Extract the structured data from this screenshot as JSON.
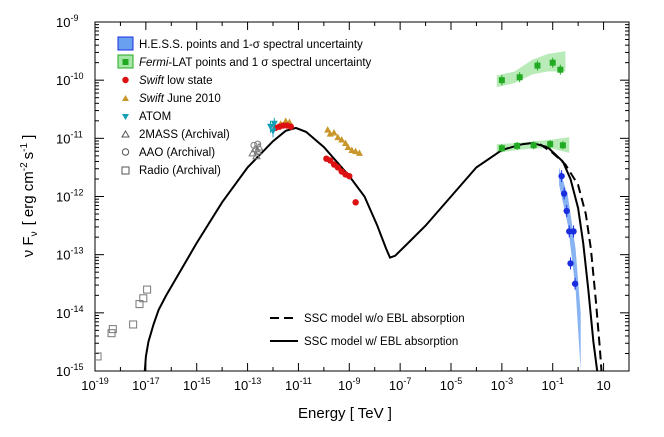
{
  "chart_data": {
    "type": "scatter",
    "xlabel": "Energy  [ TeV ]",
    "ylabel": "ν F",
    "ylabel_sub": "ν",
    "ylabel_units": "[ erg cm",
    "ylabel_exp1": "-2",
    "ylabel_s": "s",
    "ylabel_exp2": "-1",
    "ylabel_close": "]",
    "xscale": "log",
    "yscale": "log",
    "xlim_log10": [
      -19,
      2
    ],
    "ylim_log10": [
      -15,
      -9
    ],
    "x_ticks": [
      {
        "exp": -19,
        "base": "10",
        "sup": "-19"
      },
      {
        "exp": -17,
        "base": "10",
        "sup": "-17"
      },
      {
        "exp": -15,
        "base": "10",
        "sup": "-15"
      },
      {
        "exp": -13,
        "base": "10",
        "sup": "-13"
      },
      {
        "exp": -11,
        "base": "10",
        "sup": "-11"
      },
      {
        "exp": -9,
        "base": "10",
        "sup": "-9"
      },
      {
        "exp": -7,
        "base": "10",
        "sup": "-7"
      },
      {
        "exp": -5,
        "base": "10",
        "sup": "-5"
      },
      {
        "exp": -3,
        "base": "10",
        "sup": "-3"
      },
      {
        "exp": -1,
        "base": "10",
        "sup": "-1"
      },
      {
        "exp": 1,
        "base": "10",
        "sup": ""
      }
    ],
    "y_ticks": [
      {
        "exp": -9,
        "base": "10",
        "sup": "-9"
      },
      {
        "exp": -10,
        "base": "10",
        "sup": "-10"
      },
      {
        "exp": -11,
        "base": "10",
        "sup": "-11"
      },
      {
        "exp": -12,
        "base": "10",
        "sup": "-12"
      },
      {
        "exp": -13,
        "base": "10",
        "sup": "-13"
      },
      {
        "exp": -14,
        "base": "10",
        "sup": "-14"
      },
      {
        "exp": -15,
        "base": "10",
        "sup": "-15"
      }
    ],
    "legend": {
      "placement": "top-left",
      "hess": {
        "main": "H.E.S.S.",
        "rest": " points and 1-σ spectral uncertainty"
      },
      "fermi": {
        "italic": "Fermi",
        "rest": "-LAT points and 1 σ spectral uncertainty"
      },
      "swift_low": {
        "italic": "Swift",
        "rest": "  low state"
      },
      "swift_june": {
        "italic": "Swift",
        "rest": "  June 2010"
      },
      "atom": "ATOM",
      "twomass": "2MASS (Archival)",
      "aao": "AAO (Archival)",
      "radio": "Radio (Archival)",
      "ssc_no_ebl": "SSC model w/o EBL absorption",
      "ssc_ebl": "SSC model w/ EBL absorption"
    },
    "colors": {
      "swift_low": "#dd1111",
      "swift_june": "#c8962a",
      "atom": "#14a0b4",
      "fermi": "#22aa22",
      "fermi_band": "#a6e6a6",
      "hess": "#1a2ee0",
      "hess_band": "#6aa0f0",
      "archival": "#777777",
      "model": "#000000"
    },
    "series": [
      {
        "name": "SSC model w/ EBL absorption",
        "style": "solid",
        "points": [
          [
            -17.04,
            -15
          ],
          [
            -17,
            -14.75
          ],
          [
            -16.9,
            -14.5
          ],
          [
            -16.7,
            -14.2
          ],
          [
            -16.5,
            -13.95
          ],
          [
            -16.2,
            -13.7
          ],
          [
            -15.8,
            -13.4
          ],
          [
            -15,
            -12.8
          ],
          [
            -14,
            -12.1
          ],
          [
            -13,
            -11.5
          ],
          [
            -12,
            -11.05
          ],
          [
            -11.5,
            -10.87
          ],
          [
            -11.1,
            -10.82
          ],
          [
            -10.7,
            -10.89
          ],
          [
            -10,
            -11.15
          ],
          [
            -9,
            -11.65
          ],
          [
            -8.4,
            -12
          ],
          [
            -7.9,
            -12.5
          ],
          [
            -7.55,
            -12.9
          ],
          [
            -7.4,
            -13.05
          ],
          [
            -7.2,
            -13.02
          ],
          [
            -6.8,
            -12.85
          ],
          [
            -6,
            -12.5
          ],
          [
            -5,
            -12
          ],
          [
            -4,
            -11.5
          ],
          [
            -3,
            -11.2
          ],
          [
            -2.2,
            -11.1
          ],
          [
            -1.8,
            -11.08
          ],
          [
            -1.2,
            -11.15
          ],
          [
            -0.6,
            -11.4
          ],
          [
            -0.3,
            -11.7
          ],
          [
            0,
            -12.2
          ],
          [
            0.2,
            -12.8
          ],
          [
            0.4,
            -13.6
          ],
          [
            0.6,
            -14.5
          ],
          [
            0.75,
            -15
          ]
        ]
      },
      {
        "name": "SSC model w/o EBL absorption",
        "style": "dashed",
        "points": [
          [
            -1.5,
            -11.1
          ],
          [
            -1,
            -11.25
          ],
          [
            -0.5,
            -11.45
          ],
          [
            0,
            -11.8
          ],
          [
            0.3,
            -12.3
          ],
          [
            0.5,
            -12.9
          ],
          [
            0.7,
            -13.8
          ],
          [
            0.85,
            -14.6
          ],
          [
            0.92,
            -15
          ]
        ]
      },
      {
        "name": "Radio (Archival)",
        "marker": "open-square",
        "points": [
          [
            -18.9,
            -14.75
          ],
          [
            -18.35,
            -14.35
          ],
          [
            -18.3,
            -14.28
          ],
          [
            -17.5,
            -14.2
          ],
          [
            -17.25,
            -13.85
          ],
          [
            -17.1,
            -13.75
          ],
          [
            -16.95,
            -13.6
          ]
        ]
      },
      {
        "name": "2MASS (Archival)",
        "marker": "open-triangle",
        "points": [
          [
            -12.8,
            -11.25
          ],
          [
            -12.7,
            -11.18
          ],
          [
            -12.65,
            -11.3
          ],
          [
            -12.6,
            -11.22
          ],
          [
            -12.55,
            -11.15
          ]
        ]
      },
      {
        "name": "AAO (Archival)",
        "marker": "open-circle",
        "points": [
          [
            -12.75,
            -11.12
          ],
          [
            -12.6,
            -11.1
          ]
        ]
      },
      {
        "name": "ATOM",
        "marker": "triangle-down",
        "points": [
          [
            -12.1,
            -10.8
          ],
          [
            -12.0,
            -10.88
          ],
          [
            -11.95,
            -10.75
          ]
        ]
      },
      {
        "name": "Swift June 2010",
        "marker": "triangle",
        "points": [
          [
            -11.7,
            -10.75
          ],
          [
            -11.5,
            -10.7
          ],
          [
            -11.35,
            -10.72
          ],
          [
            -9.85,
            -10.85
          ],
          [
            -9.75,
            -10.92
          ],
          [
            -9.6,
            -10.9
          ],
          [
            -9.45,
            -10.98
          ],
          [
            -9.3,
            -11.02
          ],
          [
            -9.15,
            -11.08
          ],
          [
            -9.05,
            -11.15
          ],
          [
            -8.9,
            -11.2
          ],
          [
            -8.75,
            -11.22
          ],
          [
            -8.6,
            -11.25
          ]
        ]
      },
      {
        "name": "Swift low state",
        "marker": "circle",
        "points": [
          [
            -11.9,
            -10.82
          ],
          [
            -11.75,
            -10.8
          ],
          [
            -11.6,
            -10.78
          ],
          [
            -11.45,
            -10.78
          ],
          [
            -11.3,
            -10.8
          ],
          [
            -9.9,
            -11.35
          ],
          [
            -9.75,
            -11.38
          ],
          [
            -9.6,
            -11.45
          ],
          [
            -9.45,
            -11.5
          ],
          [
            -9.3,
            -11.57
          ],
          [
            -9.15,
            -11.62
          ],
          [
            -9.0,
            -11.65
          ],
          [
            -8.75,
            -12.1
          ]
        ]
      },
      {
        "name": "Fermi-LAT high",
        "marker": "square",
        "points": [
          [
            -3.0,
            -10.0
          ],
          [
            -2.3,
            -9.95
          ],
          [
            -1.6,
            -9.75
          ],
          [
            -1.0,
            -9.7
          ],
          [
            -0.7,
            -9.82
          ]
        ],
        "band": [
          [
            -3.2,
            -10.12,
            -9.92
          ],
          [
            -2.5,
            -10.05,
            -9.85
          ],
          [
            -1.8,
            -9.9,
            -9.65
          ],
          [
            -1.2,
            -9.85,
            -9.55
          ],
          [
            -0.5,
            -9.85,
            -9.5
          ]
        ]
      },
      {
        "name": "Fermi-LAT low",
        "marker": "square",
        "points": [
          [
            -3.0,
            -11.17
          ],
          [
            -2.4,
            -11.13
          ],
          [
            -1.75,
            -11.12
          ],
          [
            -1.1,
            -11.1
          ],
          [
            -0.6,
            -11.12
          ]
        ],
        "band": [
          [
            -3.2,
            -11.25,
            -11.1
          ],
          [
            -2.4,
            -11.2,
            -11.08
          ],
          [
            -1.7,
            -11.17,
            -11.05
          ],
          [
            -1.0,
            -11.18,
            -11.02
          ],
          [
            -0.35,
            -11.25,
            -10.98
          ]
        ]
      },
      {
        "name": "H.E.S.S.",
        "marker": "circle",
        "points": [
          [
            -0.65,
            -11.65
          ],
          [
            -0.55,
            -11.95
          ],
          [
            -0.45,
            -12.25
          ],
          [
            -0.35,
            -12.6
          ],
          [
            -0.3,
            -13.15
          ],
          [
            -0.18,
            -12.6
          ],
          [
            -0.12,
            -13.5
          ]
        ],
        "band": [
          [
            -0.75,
            -11.8,
            -11.5
          ],
          [
            -0.4,
            -12.5,
            -12.0
          ],
          [
            -0.1,
            -13.6,
            -12.9
          ],
          [
            0.1,
            -15.0,
            -14.0
          ]
        ]
      }
    ]
  }
}
